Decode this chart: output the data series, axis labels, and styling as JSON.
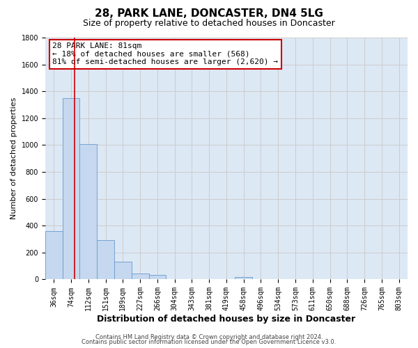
{
  "title": "28, PARK LANE, DONCASTER, DN4 5LG",
  "subtitle": "Size of property relative to detached houses in Doncaster",
  "xlabel": "Distribution of detached houses by size in Doncaster",
  "ylabel": "Number of detached properties",
  "bar_labels": [
    "36sqm",
    "74sqm",
    "112sqm",
    "151sqm",
    "189sqm",
    "227sqm",
    "266sqm",
    "304sqm",
    "343sqm",
    "381sqm",
    "419sqm",
    "458sqm",
    "496sqm",
    "534sqm",
    "573sqm",
    "611sqm",
    "650sqm",
    "688sqm",
    "726sqm",
    "765sqm",
    "803sqm"
  ],
  "bar_values": [
    360,
    1350,
    1010,
    290,
    130,
    45,
    35,
    0,
    0,
    0,
    0,
    20,
    0,
    0,
    0,
    0,
    0,
    0,
    0,
    0,
    0
  ],
  "bar_color": "#c5d8ef",
  "bar_edge_color": "#6699cc",
  "vline_color": "#cc0000",
  "annotation_text": "28 PARK LANE: 81sqm\n← 18% of detached houses are smaller (568)\n81% of semi-detached houses are larger (2,620) →",
  "annotation_box_color": "#ffffff",
  "annotation_box_edge": "#cc0000",
  "ylim": [
    0,
    1800
  ],
  "yticks": [
    0,
    200,
    400,
    600,
    800,
    1000,
    1200,
    1400,
    1600,
    1800
  ],
  "grid_color": "#cccccc",
  "bg_color": "#dde8f5",
  "footer_line1": "Contains HM Land Registry data © Crown copyright and database right 2024.",
  "footer_line2": "Contains public sector information licensed under the Open Government Licence v3.0.",
  "title_fontsize": 11,
  "subtitle_fontsize": 9,
  "xlabel_fontsize": 9,
  "ylabel_fontsize": 8,
  "tick_fontsize": 7,
  "annot_fontsize": 8,
  "footer_fontsize": 6
}
